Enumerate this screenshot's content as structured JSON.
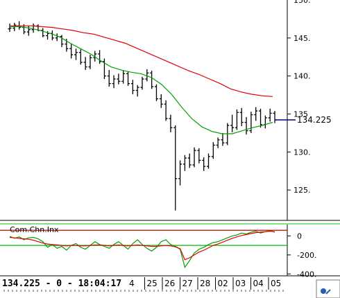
{
  "chart_data": [
    {
      "type": "line",
      "name": "price-panel",
      "ylim": [
        121,
        150
      ],
      "y_ticks": [
        "145.",
        "140.",
        "135",
        "130.",
        "125."
      ],
      "y_tick_values": [
        145,
        140,
        135,
        130,
        125
      ],
      "top_partial_tick": "150.",
      "current_price_label": "134.225",
      "current_price": 134.225,
      "price_ohlc": [
        [
          146.2,
          146.9,
          145.8,
          146.3
        ],
        [
          146.3,
          147.0,
          145.9,
          146.7
        ],
        [
          146.6,
          147.2,
          146.1,
          146.4
        ],
        [
          146.4,
          146.8,
          145.5,
          145.8
        ],
        [
          145.8,
          146.6,
          145.3,
          146.1
        ],
        [
          146.1,
          146.9,
          145.7,
          146.6
        ],
        [
          146.6,
          146.8,
          145.9,
          146.0
        ],
        [
          146.0,
          146.3,
          145.1,
          145.3
        ],
        [
          145.3,
          145.9,
          144.8,
          145.6
        ],
        [
          145.6,
          146.0,
          144.7,
          145.0
        ],
        [
          145.0,
          145.6,
          144.6,
          145.2
        ],
        [
          145.2,
          145.4,
          143.8,
          144.2
        ],
        [
          144.2,
          144.9,
          143.2,
          143.6
        ],
        [
          143.6,
          144.2,
          142.3,
          142.8
        ],
        [
          142.8,
          143.6,
          142.1,
          143.1
        ],
        [
          143.1,
          143.5,
          141.5,
          141.8
        ],
        [
          141.8,
          142.5,
          140.8,
          141.2
        ],
        [
          141.2,
          142.8,
          140.9,
          142.4
        ],
        [
          142.4,
          143.3,
          141.9,
          142.9
        ],
        [
          142.9,
          143.4,
          141.6,
          141.9
        ],
        [
          141.9,
          142.3,
          139.6,
          140.0
        ],
        [
          140.0,
          140.8,
          138.6,
          139.0
        ],
        [
          139.0,
          140.1,
          138.4,
          139.6
        ],
        [
          139.6,
          140.3,
          138.9,
          139.3
        ],
        [
          139.3,
          140.7,
          139.0,
          140.3
        ],
        [
          140.3,
          140.6,
          138.7,
          139.0
        ],
        [
          139.0,
          139.5,
          137.6,
          138.1
        ],
        [
          138.1,
          138.8,
          137.3,
          138.5
        ],
        [
          138.5,
          139.9,
          138.2,
          139.6
        ],
        [
          139.6,
          140.9,
          139.3,
          140.4
        ],
        [
          140.4,
          140.7,
          138.3,
          138.6
        ],
        [
          138.6,
          138.9,
          136.7,
          137.0
        ],
        [
          137.0,
          137.6,
          135.8,
          136.3
        ],
        [
          136.3,
          136.8,
          134.1,
          134.4
        ],
        [
          134.4,
          134.9,
          132.6,
          133.2
        ],
        [
          133.2,
          133.5,
          122.3,
          126.5
        ],
        [
          126.5,
          128.9,
          125.6,
          128.4
        ],
        [
          128.4,
          129.6,
          127.5,
          129.2
        ],
        [
          129.2,
          129.8,
          127.9,
          128.3
        ],
        [
          128.3,
          130.6,
          128.0,
          130.2
        ],
        [
          130.2,
          130.5,
          128.5,
          128.9
        ],
        [
          128.9,
          129.3,
          127.5,
          128.1
        ],
        [
          128.1,
          129.8,
          127.8,
          129.4
        ],
        [
          129.4,
          131.3,
          129.1,
          130.9
        ],
        [
          130.9,
          131.9,
          130.5,
          131.6
        ],
        [
          131.6,
          132.5,
          130.8,
          131.2
        ],
        [
          131.2,
          133.8,
          130.9,
          133.5
        ],
        [
          133.5,
          134.9,
          132.6,
          133.2
        ],
        [
          133.2,
          135.6,
          132.9,
          135.2
        ],
        [
          135.2,
          135.8,
          133.4,
          133.9
        ],
        [
          133.9,
          134.6,
          132.3,
          132.8
        ],
        [
          132.8,
          135.3,
          132.5,
          134.9
        ],
        [
          134.9,
          135.9,
          134.1,
          135.4
        ],
        [
          135.4,
          135.7,
          133.2,
          133.6
        ],
        [
          133.6,
          134.8,
          133.1,
          134.5
        ],
        [
          134.5,
          135.7,
          134.0,
          135.1
        ],
        [
          135.1,
          135.4,
          133.8,
          134.225
        ]
      ],
      "ma_red": [
        146.6,
        146.6,
        146.6,
        146.5,
        146.4,
        146.2,
        146.0,
        145.7,
        145.5,
        145.1,
        144.7,
        144.3,
        143.7,
        143.1,
        142.5,
        141.9,
        141.3,
        140.7,
        140.2,
        139.6,
        139.0,
        138.3,
        137.9,
        137.6,
        137.4,
        137.3
      ],
      "ma_green": [
        146.5,
        146.5,
        146.3,
        146.0,
        145.6,
        145.1,
        144.3,
        143.6,
        142.9,
        142.0,
        141.2,
        140.8,
        140.5,
        140.3,
        139.8,
        138.9,
        137.6,
        135.9,
        134.4,
        133.3,
        132.7,
        132.4,
        132.4,
        132.8,
        133.2,
        133.5,
        133.9
      ]
    },
    {
      "type": "line",
      "name": "indicator-panel",
      "indicator_name": "Com.Chn.Inx",
      "ylim": [
        -420,
        120
      ],
      "y_ticks": [
        "0",
        "-200.",
        "-400."
      ],
      "y_tick_values": [
        0,
        -200,
        -400
      ],
      "upper_level": 60,
      "lower_level": -100,
      "cci": [
        -5,
        -25,
        -10,
        -40,
        -20,
        -15,
        -30,
        -60,
        -120,
        -90,
        -130,
        -110,
        -150,
        -100,
        -80,
        -120,
        -140,
        -100,
        -60,
        -90,
        -110,
        -130,
        -90,
        -60,
        -100,
        -140,
        -80,
        -40,
        -90,
        -130,
        -160,
        -120,
        -60,
        -40,
        -90,
        -110,
        -140,
        -330,
        -260,
        -180,
        -140,
        -120,
        -90,
        -70,
        -60,
        -40,
        -20,
        0,
        10,
        30,
        20,
        40,
        50,
        30,
        45,
        55,
        40
      ],
      "signal": [
        -15,
        -20,
        -25,
        -30,
        -35,
        -45,
        -60,
        -75,
        -85,
        -90,
        -95,
        -100,
        -105,
        -100,
        -100,
        -105,
        -105,
        -100,
        -95,
        -95,
        -100,
        -105,
        -100,
        -95,
        -100,
        -105,
        -100,
        -95,
        -100,
        -105,
        -110,
        -110,
        -105,
        -100,
        -105,
        -115,
        -135,
        -250,
        -230,
        -200,
        -170,
        -150,
        -125,
        -100,
        -85,
        -65,
        -45,
        -25,
        -10,
        5,
        15,
        25,
        35,
        40,
        45,
        50,
        45
      ]
    }
  ],
  "status_text": "134.225 - 0 - 18:04:17",
  "date_labels": [
    "4",
    "25",
    "26",
    "27",
    "28",
    "02",
    "03",
    "04",
    "05"
  ],
  "colors": {
    "price": "#000000",
    "ma_red": "#e00000",
    "ma_green": "#00a000",
    "price_line": "#000080",
    "level_red": "#c00000",
    "level_green": "#00c000"
  },
  "corner_icon": "chart-settings-icon"
}
